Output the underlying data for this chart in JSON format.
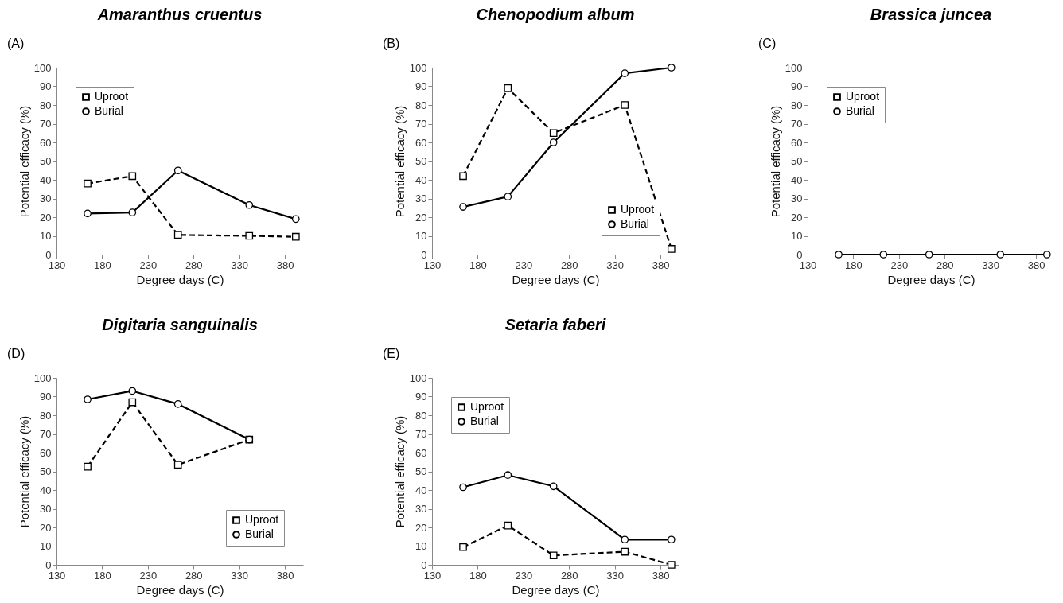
{
  "chart_data": [
    {
      "type": "line",
      "title": "Amaranthus cruentus",
      "annotations": [
        "(A)"
      ],
      "xlabel": "Degree days (C)",
      "ylabel": "Potential efficacy (%)",
      "x": [
        164,
        213,
        263,
        341,
        392
      ],
      "xlim": [
        130,
        400
      ],
      "xticks": [
        130,
        180,
        230,
        280,
        330,
        380
      ],
      "ylim": [
        0,
        100
      ],
      "yticks": [
        0,
        10,
        20,
        30,
        40,
        50,
        60,
        70,
        80,
        90,
        100
      ],
      "legend": "top left",
      "series": [
        {
          "name": "Uproot",
          "color": "#000000",
          "marker": "square",
          "line_style": "dashed",
          "values": [
            38,
            42,
            10.5,
            10,
            9.5
          ]
        },
        {
          "name": "Burial",
          "color": "#000000",
          "marker": "circle",
          "line_style": "solid",
          "values": [
            22,
            22.5,
            45,
            26.5,
            19
          ]
        }
      ]
    },
    {
      "type": "line",
      "title": "Chenopodium album",
      "annotations": [
        "(B)"
      ],
      "xlabel": "Degree days (C)",
      "ylabel": "Potential efficacy (%)",
      "x": [
        164,
        213,
        263,
        341,
        392
      ],
      "xlim": [
        130,
        400
      ],
      "xticks": [
        130,
        180,
        230,
        280,
        330,
        380
      ],
      "ylim": [
        0,
        100
      ],
      "yticks": [
        0,
        10,
        20,
        30,
        40,
        50,
        60,
        70,
        80,
        90,
        100
      ],
      "legend": "bottom right",
      "series": [
        {
          "name": "Uproot",
          "color": "#000000",
          "marker": "square",
          "line_style": "dashed",
          "values": [
            42,
            89,
            65,
            80,
            3
          ]
        },
        {
          "name": "Burial",
          "color": "#000000",
          "marker": "circle",
          "line_style": "solid",
          "values": [
            25.5,
            31,
            60,
            97,
            100
          ]
        }
      ]
    },
    {
      "type": "line",
      "title": "Brassica juncea",
      "annotations": [
        "(C)"
      ],
      "xlabel": "Degree days (C)",
      "ylabel": "Potential efficacy (%)",
      "x": [
        164,
        213,
        263,
        341,
        392
      ],
      "xlim": [
        130,
        400
      ],
      "xticks": [
        130,
        180,
        230,
        280,
        330,
        380
      ],
      "ylim": [
        0,
        100
      ],
      "yticks": [
        0,
        10,
        20,
        30,
        40,
        50,
        60,
        70,
        80,
        90,
        100
      ],
      "legend": "top left",
      "series": [
        {
          "name": "Uproot",
          "color": "#000000",
          "marker": "square",
          "line_style": "dashed",
          "values": [
            null,
            null,
            null,
            null,
            null
          ]
        },
        {
          "name": "Burial",
          "color": "#000000",
          "marker": "circle",
          "line_style": "solid",
          "values": [
            0,
            0,
            0,
            0,
            0
          ]
        }
      ]
    },
    {
      "type": "line",
      "title": "Digitaria sanguinalis",
      "annotations": [
        "(D)"
      ],
      "xlabel": "Degree days (C)",
      "ylabel": "Potential efficacy (%)",
      "x": [
        164,
        213,
        263,
        341
      ],
      "xlim": [
        130,
        400
      ],
      "xticks": [
        130,
        180,
        230,
        280,
        330,
        380
      ],
      "ylim": [
        0,
        100
      ],
      "yticks": [
        0,
        10,
        20,
        30,
        40,
        50,
        60,
        70,
        80,
        90,
        100
      ],
      "legend": "bottom right",
      "series": [
        {
          "name": "Uproot",
          "color": "#000000",
          "marker": "square",
          "line_style": "dashed",
          "values": [
            52.5,
            87,
            53.5,
            67
          ]
        },
        {
          "name": "Burial",
          "color": "#000000",
          "marker": "circle",
          "line_style": "solid",
          "values": [
            88.5,
            93,
            86,
            67
          ]
        }
      ]
    },
    {
      "type": "line",
      "title": "Setaria faberi",
      "annotations": [
        "(E)"
      ],
      "xlabel": "Degree days (C)",
      "ylabel": "Potential efficacy (%)",
      "x": [
        164,
        213,
        263,
        341,
        392
      ],
      "xlim": [
        130,
        400
      ],
      "xticks": [
        130,
        180,
        230,
        280,
        330,
        380
      ],
      "ylim": [
        0,
        100
      ],
      "yticks": [
        0,
        10,
        20,
        30,
        40,
        50,
        60,
        70,
        80,
        90,
        100
      ],
      "legend": "top left",
      "series": [
        {
          "name": "Uproot",
          "color": "#000000",
          "marker": "square",
          "line_style": "dashed",
          "values": [
            9.5,
            21,
            5,
            7,
            0
          ]
        },
        {
          "name": "Burial",
          "color": "#000000",
          "marker": "circle",
          "line_style": "solid",
          "values": [
            41.5,
            48,
            42,
            13.5,
            13.5
          ]
        }
      ]
    }
  ]
}
